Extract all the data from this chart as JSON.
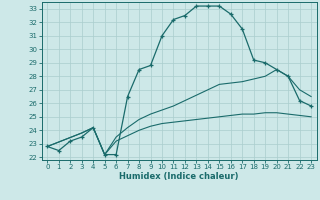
{
  "xlabel": "Humidex (Indice chaleur)",
  "xlim": [
    -0.5,
    23.5
  ],
  "ylim": [
    21.8,
    33.5
  ],
  "yticks": [
    22,
    23,
    24,
    25,
    26,
    27,
    28,
    29,
    30,
    31,
    32,
    33
  ],
  "xticks": [
    0,
    1,
    2,
    3,
    4,
    5,
    6,
    7,
    8,
    9,
    10,
    11,
    12,
    13,
    14,
    15,
    16,
    17,
    18,
    19,
    20,
    21,
    22,
    23
  ],
  "background_color": "#cde8e8",
  "grid_color": "#aacece",
  "line_color": "#1a6b6b",
  "line1_x": [
    0,
    1,
    2,
    3,
    4,
    5,
    6,
    7,
    8,
    9,
    10,
    11,
    12,
    13,
    14,
    15,
    16,
    17,
    18,
    19,
    20,
    21,
    22,
    23
  ],
  "line1_y": [
    22.8,
    22.5,
    23.2,
    23.5,
    24.2,
    22.2,
    22.2,
    26.5,
    28.5,
    28.8,
    31.0,
    32.2,
    32.5,
    33.2,
    33.2,
    33.2,
    32.6,
    31.5,
    29.2,
    29.0,
    28.5,
    28.0,
    26.2,
    25.8
  ],
  "line2_x": [
    0,
    3,
    4,
    5,
    6,
    7,
    8,
    9,
    10,
    11,
    12,
    13,
    14,
    15,
    16,
    17,
    18,
    19,
    20,
    21,
    22,
    23
  ],
  "line2_y": [
    22.8,
    23.8,
    24.2,
    22.2,
    23.5,
    24.2,
    24.8,
    25.2,
    25.5,
    25.8,
    26.2,
    26.6,
    27.0,
    27.4,
    27.5,
    27.6,
    27.8,
    28.0,
    28.5,
    28.0,
    27.0,
    26.5
  ],
  "line3_x": [
    0,
    3,
    4,
    5,
    6,
    7,
    8,
    9,
    10,
    11,
    12,
    13,
    14,
    15,
    16,
    17,
    18,
    19,
    20,
    21,
    22,
    23
  ],
  "line3_y": [
    22.8,
    23.8,
    24.2,
    22.2,
    23.2,
    23.6,
    24.0,
    24.3,
    24.5,
    24.6,
    24.7,
    24.8,
    24.9,
    25.0,
    25.1,
    25.2,
    25.2,
    25.3,
    25.3,
    25.2,
    25.1,
    25.0
  ]
}
